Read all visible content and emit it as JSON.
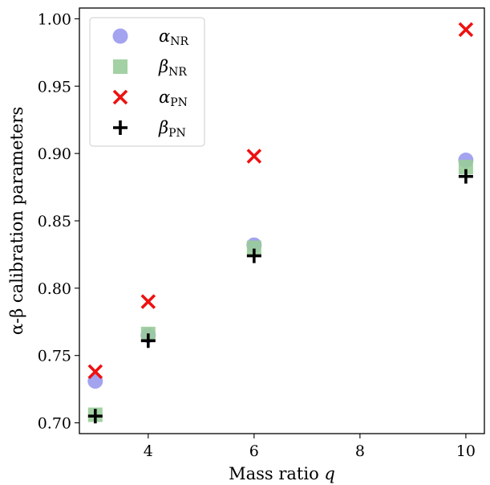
{
  "chart_data": {
    "type": "scatter",
    "title": "",
    "xlabel": "Mass ratio ",
    "xlabel_var": "q",
    "ylabel": "α-β calibration parameters",
    "xlim": [
      2.7,
      10.35
    ],
    "ylim": [
      0.692,
      1.008
    ],
    "xticks": [
      4,
      6,
      8,
      10
    ],
    "yticks": [
      0.7,
      0.75,
      0.8,
      0.85,
      0.9,
      0.95,
      1.0
    ],
    "ytick_labels": [
      "0.70",
      "0.75",
      "0.80",
      "0.85",
      "0.90",
      "0.95",
      "1.00"
    ],
    "grid": false,
    "legend_position": "top-left",
    "series": [
      {
        "name": "αNR",
        "sym": "α",
        "sub": "NR",
        "marker": "circle",
        "color": "#9999ee",
        "x": [
          3,
          4,
          6,
          10
        ],
        "y": [
          0.731,
          0.765,
          0.832,
          0.895
        ]
      },
      {
        "name": "βNR",
        "sym": "β",
        "sub": "NR",
        "marker": "square",
        "color": "#99cc99",
        "x": [
          3,
          4,
          6,
          10
        ],
        "y": [
          0.706,
          0.766,
          0.83,
          0.89
        ]
      },
      {
        "name": "αPN",
        "sym": "α",
        "sub": "PN",
        "marker": "x",
        "color": "#ee1111",
        "x": [
          3,
          4,
          6,
          10
        ],
        "y": [
          0.738,
          0.79,
          0.898,
          0.992
        ]
      },
      {
        "name": "βPN",
        "sym": "β",
        "sub": "PN",
        "marker": "plus",
        "color": "#000000",
        "x": [
          3,
          4,
          6,
          10
        ],
        "y": [
          0.705,
          0.761,
          0.824,
          0.883
        ]
      }
    ]
  }
}
